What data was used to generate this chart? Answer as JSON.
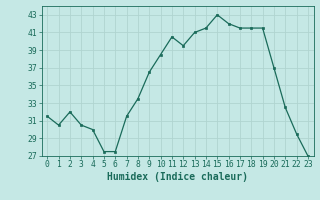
{
  "x": [
    0,
    1,
    2,
    3,
    4,
    5,
    6,
    7,
    8,
    9,
    10,
    11,
    12,
    13,
    14,
    15,
    16,
    17,
    18,
    19,
    20,
    21,
    22,
    23
  ],
  "y": [
    31.5,
    30.5,
    32.0,
    30.5,
    30.0,
    27.5,
    27.5,
    31.5,
    33.5,
    36.5,
    38.5,
    40.5,
    39.5,
    41.0,
    41.5,
    43.0,
    42.0,
    41.5,
    41.5,
    41.5,
    37.0,
    32.5,
    29.5,
    27.0
  ],
  "xlabel": "Humidex (Indice chaleur)",
  "bg_color": "#c5e8e5",
  "line_color": "#1a6b5a",
  "grid_color": "#b0d4d0",
  "ylim": [
    27,
    44
  ],
  "yticks": [
    27,
    29,
    31,
    33,
    35,
    37,
    39,
    41,
    43
  ],
  "xticks": [
    0,
    1,
    2,
    3,
    4,
    5,
    6,
    7,
    8,
    9,
    10,
    11,
    12,
    13,
    14,
    15,
    16,
    17,
    18,
    19,
    20,
    21,
    22,
    23
  ],
  "tick_fontsize": 5.8,
  "label_fontsize": 7.0
}
